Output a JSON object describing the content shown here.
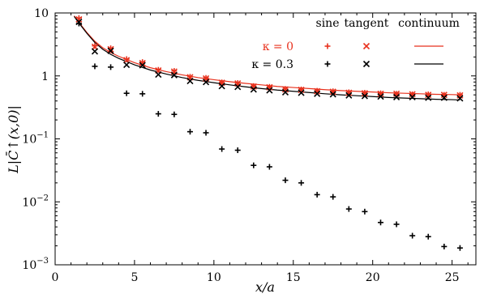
{
  "chart_data": {
    "type": "scatter",
    "xlabel": "x/a",
    "ylabel": "L|C̄↑(x,0)|",
    "xlim": [
      0,
      26.5
    ],
    "ylim": [
      0.001,
      10
    ],
    "yscale": "log",
    "xticks": [
      0,
      5,
      10,
      15,
      20,
      25
    ],
    "yticks": [
      {
        "value": 0.001,
        "base": "10",
        "exp": "−3"
      },
      {
        "value": 0.01,
        "base": "10",
        "exp": "−2"
      },
      {
        "value": 0.1,
        "base": "10",
        "exp": "−1"
      },
      {
        "value": 1,
        "label": "1"
      },
      {
        "value": 10,
        "label": "10"
      }
    ],
    "legend": {
      "placement": "top-right",
      "columns": [
        "sine",
        "tangent",
        "continuum"
      ],
      "rows": [
        {
          "label": "κ = 0",
          "color": "#e8321e"
        },
        {
          "label": "κ = 0.3",
          "color": "#000000"
        }
      ]
    },
    "series": [
      {
        "kappa": "0",
        "marker": "sine",
        "color": "#e8321e",
        "x": [
          1.5,
          2.5,
          3.5,
          4.5,
          5.5,
          6.5,
          7.5,
          8.5,
          9.5,
          10.5,
          11.5,
          12.5,
          13.5,
          14.5,
          15.5,
          16.5,
          17.5,
          18.5,
          19.5,
          20.5,
          21.5,
          22.5,
          23.5,
          24.5,
          25.5
        ],
        "y": [
          8.3,
          3.0,
          2.75,
          1.85,
          1.66,
          1.25,
          1.2,
          0.97,
          0.93,
          0.79,
          0.77,
          0.69,
          0.67,
          0.62,
          0.61,
          0.58,
          0.57,
          0.55,
          0.54,
          0.53,
          0.52,
          0.51,
          0.51,
          0.5,
          0.5
        ]
      },
      {
        "kappa": "0",
        "marker": "tangent",
        "color": "#e8321e",
        "x": [
          1.5,
          2.5,
          3.5,
          4.5,
          5.5,
          6.5,
          7.5,
          8.5,
          9.5,
          10.5,
          11.5,
          12.5,
          13.5,
          14.5,
          15.5,
          16.5,
          17.5,
          18.5,
          19.5,
          20.5,
          21.5,
          22.5,
          23.5,
          24.5,
          25.5
        ],
        "y": [
          7.9,
          2.9,
          2.65,
          1.78,
          1.6,
          1.22,
          1.17,
          0.95,
          0.91,
          0.78,
          0.76,
          0.68,
          0.66,
          0.61,
          0.6,
          0.57,
          0.56,
          0.54,
          0.53,
          0.52,
          0.52,
          0.51,
          0.5,
          0.5,
          0.49
        ]
      },
      {
        "kappa": "0.3",
        "marker": "sine",
        "color": "#000000",
        "x": [
          1.5,
          2.5,
          3.5,
          4.5,
          5.5,
          6.5,
          7.5,
          8.5,
          9.5,
          10.5,
          11.5,
          12.5,
          13.5,
          14.5,
          15.5,
          16.5,
          17.5,
          18.5,
          19.5,
          20.5,
          21.5,
          22.5,
          23.5,
          24.5,
          25.5
        ],
        "y": [
          6.8,
          1.42,
          1.38,
          0.53,
          0.52,
          0.25,
          0.245,
          0.13,
          0.125,
          0.069,
          0.066,
          0.038,
          0.036,
          0.022,
          0.02,
          0.013,
          0.012,
          0.0077,
          0.007,
          0.0047,
          0.0044,
          0.0029,
          0.0028,
          0.00195,
          0.00185
        ]
      },
      {
        "kappa": "0.3",
        "marker": "tangent",
        "color": "#000000",
        "x": [
          1.5,
          2.5,
          3.5,
          4.5,
          5.5,
          6.5,
          7.5,
          8.5,
          9.5,
          10.5,
          11.5,
          12.5,
          13.5,
          14.5,
          15.5,
          16.5,
          17.5,
          18.5,
          19.5,
          20.5,
          21.5,
          22.5,
          23.5,
          24.5,
          25.5
        ],
        "y": [
          7.2,
          2.45,
          2.5,
          1.5,
          1.48,
          1.05,
          1.03,
          0.83,
          0.8,
          0.69,
          0.67,
          0.61,
          0.59,
          0.55,
          0.54,
          0.52,
          0.51,
          0.49,
          0.48,
          0.47,
          0.46,
          0.46,
          0.45,
          0.45,
          0.44
        ]
      },
      {
        "kappa": "0",
        "marker": "continuum",
        "color": "#e8321e",
        "x": [
          1.2,
          1.5,
          2,
          2.5,
          3,
          3.5,
          4,
          5,
          6,
          7,
          8,
          9,
          10,
          11,
          12,
          13,
          14,
          15,
          16,
          17,
          18,
          19,
          20,
          21,
          22,
          23,
          24,
          25,
          25.5
        ],
        "y": [
          9.0,
          7.1,
          4.9,
          3.55,
          2.8,
          2.35,
          2.05,
          1.62,
          1.35,
          1.17,
          1.04,
          0.94,
          0.87,
          0.81,
          0.76,
          0.72,
          0.68,
          0.655,
          0.63,
          0.605,
          0.585,
          0.57,
          0.555,
          0.54,
          0.53,
          0.52,
          0.51,
          0.505,
          0.5
        ]
      },
      {
        "kappa": "0.3",
        "marker": "continuum",
        "color": "#000000",
        "x": [
          1.2,
          1.5,
          2,
          2.5,
          3,
          3.5,
          4,
          5,
          6,
          7,
          8,
          9,
          10,
          11,
          12,
          13,
          14,
          15,
          16,
          17,
          18,
          19,
          20,
          21,
          22,
          23,
          24,
          25,
          25.5
        ],
        "y": [
          8.8,
          6.9,
          4.75,
          3.4,
          2.65,
          2.2,
          1.9,
          1.5,
          1.24,
          1.07,
          0.94,
          0.85,
          0.78,
          0.72,
          0.67,
          0.63,
          0.595,
          0.57,
          0.545,
          0.52,
          0.5,
          0.485,
          0.47,
          0.455,
          0.445,
          0.435,
          0.425,
          0.42,
          0.415
        ]
      }
    ]
  }
}
